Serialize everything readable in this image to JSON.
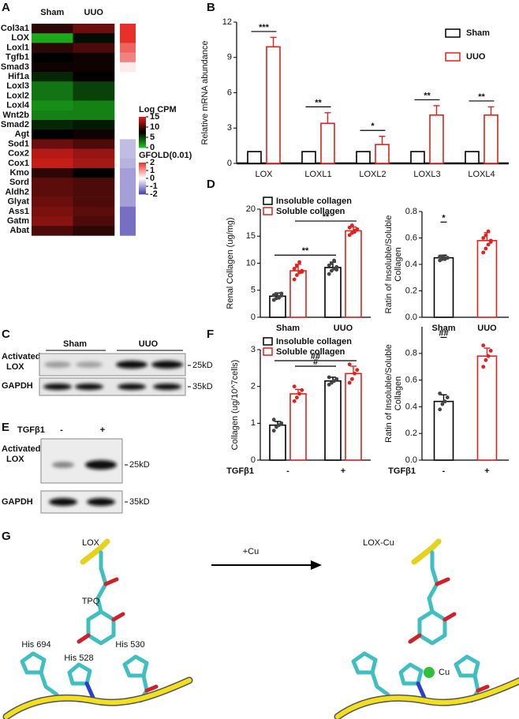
{
  "panel_labels": [
    "A",
    "B",
    "C",
    "D",
    "E",
    "F",
    "G"
  ],
  "chart_data": [
    {
      "type": "heatmap",
      "columns": [
        "Sham",
        "UUO"
      ],
      "rows": [
        "Col3a1",
        "LOX",
        "Loxl1",
        "Tgfb1",
        "Smad3",
        "Hif1a",
        "Loxl3",
        "Loxl2",
        "Loxl4",
        "Wnt2b",
        "Smad2",
        "Agt",
        "Sod1",
        "Cox2",
        "Cox1",
        "Kmo",
        "Sord",
        "Aldh2",
        "Glyat",
        "Ass1",
        "Gatm",
        "Abat"
      ],
      "values": [
        [
          9,
          11
        ],
        [
          1,
          7
        ],
        [
          9,
          10
        ],
        [
          7.5,
          8
        ],
        [
          8,
          8
        ],
        [
          6,
          7.5
        ],
        [
          3,
          5
        ],
        [
          3,
          5
        ],
        [
          2,
          2.5
        ],
        [
          2.5,
          2.5
        ],
        [
          6,
          6.5
        ],
        [
          7.5,
          8
        ],
        [
          11,
          10
        ],
        [
          13.5,
          12.5
        ],
        [
          14,
          13
        ],
        [
          9,
          7.5
        ],
        [
          10.5,
          10
        ],
        [
          10.5,
          10
        ],
        [
          11,
          10
        ],
        [
          11.5,
          10.5
        ],
        [
          12,
          10
        ],
        [
          10,
          9
        ]
      ],
      "colorbar": {
        "title": "Log CPM",
        "range": [
          0,
          15
        ],
        "ticks": [
          15,
          10,
          5,
          0
        ],
        "colors": [
          "#1fc21f",
          "#000000",
          "#e3211c"
        ]
      },
      "annotation": {
        "title": "GFOLD(0.01)",
        "values": [
          2,
          2,
          1.5,
          1.2,
          0.2,
          null,
          null,
          null,
          null,
          null,
          null,
          null,
          -0.7,
          -0.7,
          -0.8,
          -1,
          -1,
          -1,
          -1,
          -1.5,
          -1.5,
          -1.5
        ],
        "range": [
          -2,
          2
        ],
        "ticks": [
          2,
          1,
          0,
          -1,
          -2
        ],
        "colors": [
          "#4a3fae",
          "#ffffff",
          "#e8302a"
        ]
      }
    },
    {
      "type": "bar",
      "ylabel": [
        "Relative mRNA abundance"
      ],
      "categories": [
        "LOX",
        "LOXL1",
        "LOXL2",
        "LOXL3",
        "LOXL4"
      ],
      "series": [
        {
          "name": "Sham",
          "color": "#000000",
          "values": [
            1,
            1,
            1,
            1,
            1
          ]
        },
        {
          "name": "UUO",
          "color": "#e3211c",
          "values": [
            9.9,
            3.4,
            1.6,
            4.1,
            4.1
          ],
          "errors": [
            0.8,
            0.9,
            0.7,
            0.8,
            0.7
          ]
        }
      ],
      "ylim": [
        0,
        12
      ],
      "yticks": [
        0,
        3,
        6,
        9,
        12
      ],
      "legend": "upper right",
      "annotations": [
        {
          "text": "***",
          "y": 11.2
        },
        {
          "text": "**",
          "y": 4.8
        },
        {
          "text": "*",
          "y": 2.8
        },
        {
          "text": "**",
          "y": 5.4
        },
        {
          "text": "**",
          "y": 5.3
        }
      ]
    },
    {
      "type": "bar",
      "ylabel": [
        "Renal Collagen (ug/mg)"
      ],
      "categories": [
        "Sham",
        "UUO"
      ],
      "series": [
        {
          "name": "Insoluble collagen",
          "color": "#000000",
          "values": [
            3.9,
            9.2
          ],
          "errors": [
            0.6,
            1.0
          ],
          "points": [
            [
              3.2,
              3.5,
              3.8,
              4.0,
              4.1,
              4.3,
              3.6,
              4.4
            ],
            [
              8.0,
              8.6,
              9.0,
              9.3,
              9.6,
              10.0,
              10.5,
              8.8
            ]
          ]
        },
        {
          "name": "Soluble collagen",
          "color": "#e3211c",
          "values": [
            8.6,
            16.0
          ],
          "errors": [
            1.2,
            0.7
          ],
          "points": [
            [
              7.0,
              7.8,
              8.3,
              8.6,
              9.0,
              9.5,
              10.2,
              8.4
            ],
            [
              15.2,
              15.6,
              16.0,
              16.3,
              16.6,
              17.0,
              15.8,
              16.2
            ]
          ]
        }
      ],
      "ylim": [
        0,
        20
      ],
      "yticks": [
        0,
        5,
        10,
        15,
        20
      ],
      "legend": "upper left",
      "annotations": [
        {
          "text": "**",
          "y": 11.5
        },
        {
          "text": "**",
          "y": 17.8
        }
      ]
    },
    {
      "type": "bar",
      "ylabel": [
        "Ratin of Insoluble/Soluble",
        "Collagen"
      ],
      "categories": [
        "Sham",
        "UUO"
      ],
      "series": [
        {
          "colors": [
            "#000000",
            "#e3211c"
          ],
          "values": [
            0.45,
            0.58
          ],
          "errors": [
            0.02,
            0.06
          ],
          "points": [
            [
              0.43,
              0.44,
              0.45,
              0.45,
              0.46,
              0.46,
              0.44,
              0.45
            ],
            [
              0.49,
              0.52,
              0.55,
              0.58,
              0.6,
              0.62,
              0.65,
              0.57
            ]
          ]
        }
      ],
      "ylim": [
        0,
        0.8
      ],
      "yticks": [
        {
          "value": 0,
          "label": "0.0"
        },
        0.2,
        0.4,
        0.6,
        0.8
      ],
      "annotations": [
        {
          "text": "*",
          "y": 0.72
        }
      ]
    },
    {
      "type": "bar",
      "ylabel": [
        "Collagen (ug/10^7cells)"
      ],
      "xlabel": "TGFβ1",
      "categories": [
        "-",
        "+"
      ],
      "series": [
        {
          "name": "Insoluble collagen",
          "color": "#000000",
          "values": [
            0.95,
            2.15
          ],
          "errors": [
            0.1,
            0.1
          ],
          "points": [
            [
              0.8,
              0.9,
              0.95,
              1.0,
              1.1
            ],
            [
              2.05,
              2.1,
              2.15,
              2.2,
              2.25
            ]
          ]
        },
        {
          "name": "Soluble collagen",
          "color": "#e3211c",
          "values": [
            1.8,
            2.35
          ],
          "errors": [
            0.12,
            0.2
          ],
          "points": [
            [
              1.6,
              1.7,
              1.8,
              1.9,
              2.0
            ],
            [
              2.1,
              2.2,
              2.35,
              2.45,
              2.6
            ]
          ]
        }
      ],
      "ylim": [
        0,
        3
      ],
      "yticks": [
        0,
        1,
        2,
        3
      ],
      "legend": "upper left",
      "annotations": [
        {
          "text": "##",
          "y": 2.7
        },
        {
          "text": "#",
          "y": 2.55
        }
      ]
    },
    {
      "type": "bar",
      "ylabel": [
        "Ratin of Insoluble/Soluble",
        "Collagen"
      ],
      "xlabel": "TGFβ1",
      "categories": [
        "-",
        "+"
      ],
      "series": [
        {
          "colors": [
            "#000000",
            "#e3211c"
          ],
          "values": [
            0.44,
            0.78
          ],
          "errors": [
            0.05,
            0.06
          ],
          "points": [
            [
              0.38,
              0.42,
              0.44,
              0.47,
              0.5
            ],
            [
              0.7,
              0.75,
              0.78,
              0.82,
              0.86
            ]
          ]
        }
      ],
      "ylim": [
        0,
        1.0
      ],
      "yticks": [
        {
          "value": 0,
          "label": "0.0"
        },
        0.2,
        0.4,
        0.6,
        0.8
      ],
      "annotations": [
        {
          "text": "##",
          "y": 0.92
        }
      ]
    }
  ],
  "blots": [
    {
      "groups": [
        "Sham",
        "UUO"
      ],
      "rows": [
        {
          "label": [
            "Activated",
            "LOX"
          ],
          "size": "25kD"
        },
        {
          "label": [
            "GAPDH"
          ],
          "size": "35kD"
        }
      ]
    },
    {
      "treatment": "TGFβ1",
      "conditions": [
        "-",
        "+"
      ],
      "rows": [
        {
          "label": [
            "Activated",
            "LOX"
          ],
          "size": "25kD"
        },
        {
          "label": [
            "GAPDH"
          ],
          "size": "35kD"
        }
      ]
    }
  ],
  "structure": {
    "left_title": "LOX",
    "cofactor": "TPQ",
    "residues": [
      "His 694",
      "His 528",
      "His 530"
    ],
    "arrow_label": "+Cu",
    "right_title": "LOX-Cu",
    "ion": "Cu"
  }
}
